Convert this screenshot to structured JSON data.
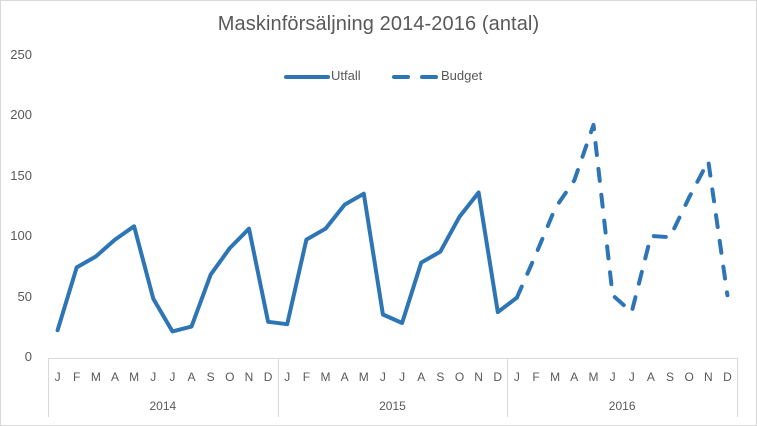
{
  "chart": {
    "title": "Maskinförsäljning 2014-2016 (antal)",
    "legend": [
      {
        "name": "Utfall",
        "style": "solid"
      },
      {
        "name": "Budget",
        "style": "dashed"
      }
    ],
    "y_ticks": [
      "250",
      "200",
      "150",
      "100",
      "50",
      "0"
    ],
    "month_labels": [
      "J",
      "F",
      "M",
      "A",
      "M",
      "J",
      "J",
      "A",
      "S",
      "O",
      "N",
      "D"
    ],
    "years": [
      "2014",
      "2015",
      "2016"
    ],
    "colors": {
      "series": "#2e75b6",
      "text": "#595959",
      "axis": "#d9d9d9"
    }
  },
  "chart_data": {
    "type": "line",
    "title": "Maskinförsäljning 2014-2016 (antal)",
    "xlabel": "",
    "ylabel": "",
    "ylim": [
      0,
      250
    ],
    "y_ticks": [
      0,
      50,
      100,
      150,
      200,
      250
    ],
    "grid": false,
    "legend_position": "top",
    "categories": [
      "J 2014",
      "F 2014",
      "M 2014",
      "A 2014",
      "M 2014",
      "J 2014",
      "J 2014",
      "A 2014",
      "S 2014",
      "O 2014",
      "N 2014",
      "D 2014",
      "J 2015",
      "F 2015",
      "M 2015",
      "A 2015",
      "M 2015",
      "J 2015",
      "J 2015",
      "A 2015",
      "S 2015",
      "O 2015",
      "N 2015",
      "D 2015",
      "J 2016",
      "F 2016",
      "M 2016",
      "A 2016",
      "M 2016",
      "J 2016",
      "J 2016",
      "A 2016",
      "S 2016",
      "O 2016",
      "N 2016",
      "D 2016"
    ],
    "series": [
      {
        "name": "Utfall",
        "style": "solid",
        "values": [
          23,
          75,
          84,
          98,
          109,
          49,
          22,
          26,
          69,
          91,
          107,
          30,
          28,
          98,
          107,
          127,
          136,
          36,
          29,
          79,
          88,
          117,
          137,
          38,
          50,
          null,
          null,
          null,
          null,
          null,
          null,
          null,
          null,
          null,
          null,
          null
        ]
      },
      {
        "name": "Budget",
        "style": "dashed",
        "values": [
          null,
          null,
          null,
          null,
          null,
          null,
          null,
          null,
          null,
          null,
          null,
          null,
          null,
          null,
          null,
          null,
          null,
          null,
          null,
          null,
          null,
          null,
          null,
          null,
          50,
          86,
          124,
          147,
          193,
          52,
          38,
          101,
          100,
          133,
          163,
          52
        ]
      }
    ]
  }
}
